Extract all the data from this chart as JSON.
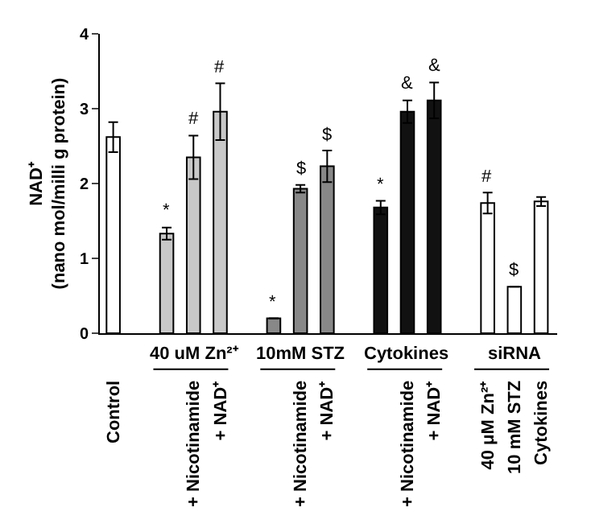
{
  "chart_data": {
    "type": "bar",
    "ylabel": "NAD⁺\n(nano mol/milli g protein)",
    "categories": [
      "Control",
      null,
      null,
      "+ Nicotinamide",
      "+ NAD⁺",
      null,
      null,
      "+ Nicotinamide",
      "+ NAD⁺",
      null,
      null,
      "+ Nicotinamide",
      "+ NAD⁺",
      null,
      "40 μM Zn²⁺",
      "10 mM STZ",
      "Cytokines"
    ],
    "values": [
      2.62,
      null,
      1.33,
      2.35,
      2.96,
      null,
      0.2,
      1.93,
      2.23,
      null,
      1.68,
      2.96,
      3.11,
      null,
      1.74,
      0.62,
      1.76
    ],
    "errors": [
      0.2,
      null,
      0.08,
      0.29,
      0.38,
      null,
      null,
      0.05,
      0.21,
      null,
      0.09,
      0.15,
      0.24,
      null,
      0.14,
      null,
      0.06
    ],
    "value_labels": [
      null,
      null,
      "*",
      "#",
      "#",
      null,
      "*",
      "$",
      "$",
      null,
      "*",
      "&",
      "&",
      null,
      "#",
      "$",
      null
    ],
    "colors": [
      "#ffffff",
      null,
      "#c8c8c8",
      "#c8c8c8",
      "#c8c8c8",
      null,
      "#888888",
      "#888888",
      "#888888",
      null,
      "#111111",
      "#111111",
      "#111111",
      null,
      "#ffffff",
      "#ffffff",
      "#ffffff"
    ],
    "annotations": [
      "40 uM Zn²⁺",
      "10mM STZ",
      "Cytokines",
      "siRNA"
    ],
    "ylim": [
      0,
      4
    ],
    "yticks": [
      0,
      1,
      2,
      3,
      4
    ],
    "grid": false
  }
}
